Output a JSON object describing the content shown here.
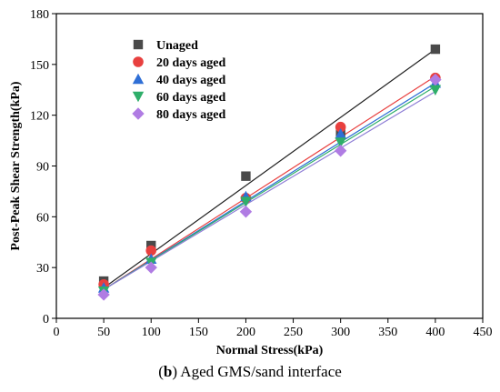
{
  "chart_data": {
    "type": "scatter",
    "xlabel": "Normal Stress(kPa)",
    "ylabel": "Post-Peak Shear Strength(kPa)",
    "xlim": [
      0,
      450
    ],
    "ylim": [
      0,
      180
    ],
    "xticks": [
      0,
      50,
      100,
      150,
      200,
      250,
      300,
      350,
      400,
      450
    ],
    "yticks": [
      0,
      30,
      60,
      90,
      120,
      150,
      180
    ],
    "grid": false,
    "legend_position": "top-left",
    "series": [
      {
        "name": "Unaged",
        "marker": "square",
        "color": "#4a4a4a",
        "line_color": "#222222",
        "x": [
          50,
          100,
          200,
          300,
          400
        ],
        "y": [
          22,
          43,
          84,
          110,
          159
        ],
        "fit": [
          [
            50,
            18
          ],
          [
            400,
            159
          ]
        ]
      },
      {
        "name": "20 days aged",
        "marker": "circle",
        "color": "#e8403f",
        "line_color": "#e8403f",
        "x": [
          50,
          100,
          200,
          300,
          400
        ],
        "y": [
          20,
          40,
          71,
          113,
          142
        ],
        "fit": [
          [
            50,
            17
          ],
          [
            400,
            143
          ]
        ]
      },
      {
        "name": "40 days aged",
        "marker": "triangle-up",
        "color": "#2f6fd6",
        "line_color": "#2f6fd6",
        "x": [
          50,
          100,
          200,
          300,
          400
        ],
        "y": [
          18,
          35,
          72,
          109,
          139
        ],
        "fit": [
          [
            50,
            17
          ],
          [
            400,
            139
          ]
        ]
      },
      {
        "name": "60 days aged",
        "marker": "triangle-down",
        "color": "#2fae6a",
        "line_color": "#2fae6a",
        "x": [
          50,
          100,
          200,
          300,
          400
        ],
        "y": [
          16,
          33,
          69,
          104,
          135
        ],
        "fit": [
          [
            50,
            17
          ],
          [
            400,
            137
          ]
        ]
      },
      {
        "name": "80 days aged",
        "marker": "diamond",
        "color": "#b07ce3",
        "line_color": "#8f7fd6",
        "x": [
          50,
          100,
          200,
          300,
          400
        ],
        "y": [
          14,
          30,
          63,
          99,
          141
        ],
        "fit": [
          [
            50,
            17
          ],
          [
            400,
            134
          ]
        ]
      }
    ]
  },
  "caption": {
    "prefix": "(",
    "letter": "b",
    "suffix": ") Aged GMS/sand interface"
  }
}
